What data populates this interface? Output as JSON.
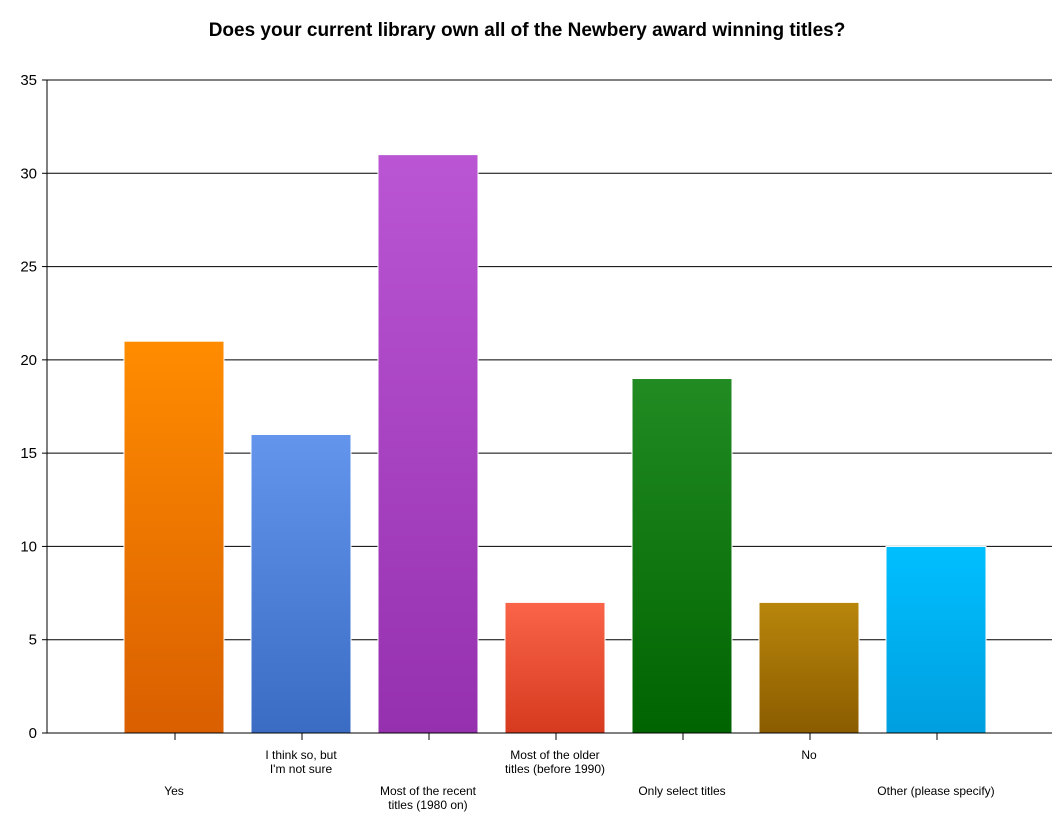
{
  "chart_data": {
    "type": "bar",
    "title": "Does your current library own all of the Newbery award winning titles?",
    "xlabel": "",
    "ylabel": "",
    "categories": [
      "Yes",
      "I think so, but I'm not sure",
      "Most of the recent titles (1980 on)",
      "Most of the older titles (before 1990)",
      "Only select titles",
      "No",
      "Other (please specify)"
    ],
    "category_label_lines": [
      [
        "Yes"
      ],
      [
        "I think so, but",
        "I'm not sure"
      ],
      [
        "Most of the recent",
        "titles (1980 on)"
      ],
      [
        "Most of the older",
        "titles (before 1990)"
      ],
      [
        "Only select titles"
      ],
      [
        "No"
      ],
      [
        "Other (please specify)"
      ]
    ],
    "label_rows": [
      "low",
      "high",
      "low",
      "high",
      "low",
      "high",
      "low"
    ],
    "values": [
      21,
      16,
      31,
      7,
      19,
      7,
      10
    ],
    "ylim": [
      0,
      35
    ],
    "yticks": [
      0,
      5,
      10,
      15,
      20,
      25,
      30,
      35
    ],
    "grid": true,
    "legend": "none",
    "bar_colors": [
      [
        "#ff8c00",
        "#d95f00"
      ],
      [
        "#6495ed",
        "#3b6cc4"
      ],
      [
        "#ba55d3",
        "#9530ae"
      ],
      [
        "#fa6448",
        "#d63a1f"
      ],
      [
        "#228b22",
        "#006400"
      ],
      [
        "#b8860b",
        "#8b5c00"
      ],
      [
        "#00bfff",
        "#009fdf"
      ]
    ]
  }
}
